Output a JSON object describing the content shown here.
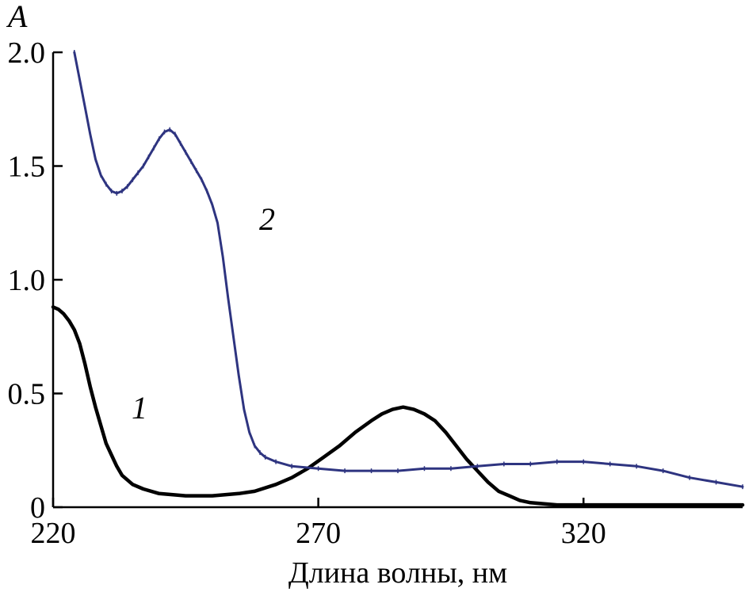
{
  "chart_data": {
    "type": "line",
    "title": "",
    "xlabel": "Длина волны, нм",
    "ylabel": "A",
    "xlim": [
      220,
      350
    ],
    "ylim": [
      0,
      2.0
    ],
    "x_ticks": [
      220,
      270,
      320
    ],
    "x_tick_labels": [
      "220",
      "270",
      "320"
    ],
    "y_ticks": [
      0,
      0.5,
      1.0,
      1.5,
      2.0
    ],
    "y_tick_labels": [
      "0",
      "0.5",
      "1.0",
      "1.5",
      "2.0"
    ],
    "grid": false,
    "legend": "none",
    "series": [
      {
        "label": "1",
        "color": "#000000",
        "points": [
          [
            220,
            0.88
          ],
          [
            221,
            0.87
          ],
          [
            222,
            0.85
          ],
          [
            223,
            0.82
          ],
          [
            224,
            0.78
          ],
          [
            225,
            0.72
          ],
          [
            226,
            0.63
          ],
          [
            227,
            0.53
          ],
          [
            228,
            0.44
          ],
          [
            229,
            0.36
          ],
          [
            230,
            0.28
          ],
          [
            231,
            0.23
          ],
          [
            232,
            0.18
          ],
          [
            233,
            0.14
          ],
          [
            234,
            0.12
          ],
          [
            235,
            0.1
          ],
          [
            237,
            0.08
          ],
          [
            240,
            0.06
          ],
          [
            245,
            0.05
          ],
          [
            250,
            0.05
          ],
          [
            255,
            0.06
          ],
          [
            258,
            0.07
          ],
          [
            262,
            0.1
          ],
          [
            265,
            0.13
          ],
          [
            268,
            0.17
          ],
          [
            271,
            0.22
          ],
          [
            274,
            0.27
          ],
          [
            277,
            0.33
          ],
          [
            280,
            0.38
          ],
          [
            282,
            0.41
          ],
          [
            284,
            0.43
          ],
          [
            286,
            0.44
          ],
          [
            288,
            0.43
          ],
          [
            290,
            0.41
          ],
          [
            292,
            0.38
          ],
          [
            294,
            0.33
          ],
          [
            296,
            0.27
          ],
          [
            298,
            0.21
          ],
          [
            300,
            0.16
          ],
          [
            302,
            0.11
          ],
          [
            304,
            0.07
          ],
          [
            306,
            0.05
          ],
          [
            308,
            0.03
          ],
          [
            310,
            0.02
          ],
          [
            315,
            0.01
          ],
          [
            320,
            0.01
          ],
          [
            330,
            0.01
          ],
          [
            340,
            0.01
          ],
          [
            350,
            0.01
          ]
        ]
      },
      {
        "label": "2",
        "color": "#2e3480",
        "points": [
          [
            224,
            2.0
          ],
          [
            225,
            1.88
          ],
          [
            226,
            1.76
          ],
          [
            227,
            1.64
          ],
          [
            228,
            1.53
          ],
          [
            229,
            1.46
          ],
          [
            230,
            1.42
          ],
          [
            231,
            1.39
          ],
          [
            232,
            1.38
          ],
          [
            233,
            1.39
          ],
          [
            234,
            1.41
          ],
          [
            235,
            1.44
          ],
          [
            236,
            1.47
          ],
          [
            237,
            1.5
          ],
          [
            238,
            1.54
          ],
          [
            239,
            1.58
          ],
          [
            240,
            1.62
          ],
          [
            241,
            1.65
          ],
          [
            242,
            1.66
          ],
          [
            243,
            1.64
          ],
          [
            244,
            1.6
          ],
          [
            245,
            1.56
          ],
          [
            246,
            1.52
          ],
          [
            247,
            1.48
          ],
          [
            248,
            1.44
          ],
          [
            249,
            1.39
          ],
          [
            250,
            1.33
          ],
          [
            251,
            1.25
          ],
          [
            252,
            1.1
          ],
          [
            253,
            0.92
          ],
          [
            254,
            0.75
          ],
          [
            255,
            0.58
          ],
          [
            256,
            0.43
          ],
          [
            257,
            0.33
          ],
          [
            258,
            0.27
          ],
          [
            259,
            0.24
          ],
          [
            260,
            0.22
          ],
          [
            262,
            0.2
          ],
          [
            265,
            0.18
          ],
          [
            270,
            0.17
          ],
          [
            275,
            0.16
          ],
          [
            280,
            0.16
          ],
          [
            285,
            0.16
          ],
          [
            290,
            0.17
          ],
          [
            295,
            0.17
          ],
          [
            300,
            0.18
          ],
          [
            305,
            0.19
          ],
          [
            310,
            0.19
          ],
          [
            315,
            0.2
          ],
          [
            320,
            0.2
          ],
          [
            325,
            0.19
          ],
          [
            330,
            0.18
          ],
          [
            335,
            0.16
          ],
          [
            340,
            0.13
          ],
          [
            345,
            0.11
          ],
          [
            350,
            0.09
          ]
        ]
      }
    ]
  }
}
